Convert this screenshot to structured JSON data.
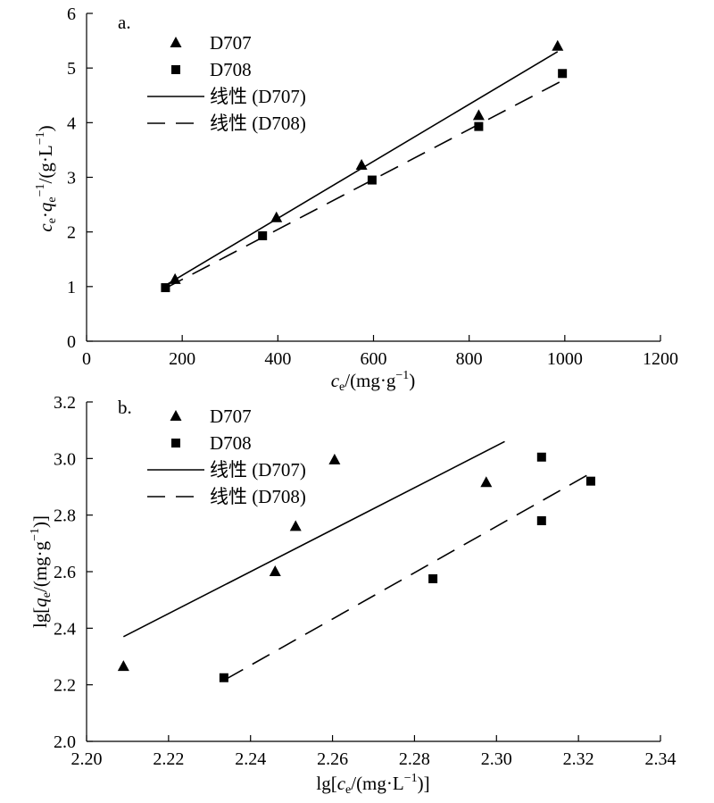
{
  "chart_data": [
    {
      "type": "scatter",
      "panel_label": "a.",
      "xlabel": "c_e/(mg·g^-1)",
      "ylabel": "c_e·q_e^-1/(g·L^-1)",
      "xlim": [
        0,
        1200
      ],
      "ylim": [
        0,
        6
      ],
      "x_ticks": [
        0,
        200,
        400,
        600,
        800,
        1000,
        1200
      ],
      "y_ticks": [
        0,
        1,
        2,
        3,
        4,
        5,
        6
      ],
      "x_tick_labels": [
        "0",
        "200",
        "400",
        "600",
        "800",
        "1000",
        "1200"
      ],
      "y_tick_labels": [
        "0",
        "1",
        "2",
        "3",
        "4",
        "5",
        "6"
      ],
      "legend_position": "top-left",
      "series": [
        {
          "name": "D707",
          "marker": "triangle",
          "x": [
            185,
            397,
            575,
            820,
            985
          ],
          "y": [
            1.13,
            2.26,
            3.22,
            4.13,
            5.4
          ]
        },
        {
          "name": "D708",
          "marker": "square",
          "x": [
            165,
            368,
            597,
            820,
            995
          ],
          "y": [
            0.98,
            1.93,
            2.95,
            3.93,
            4.9
          ]
        }
      ],
      "fits": [
        {
          "name": "线性 (D707)",
          "style": "solid",
          "x": [
            170,
            985
          ],
          "y": [
            1.05,
            5.3
          ]
        },
        {
          "name": "线性 (D708)",
          "style": "dashed",
          "x": [
            165,
            995
          ],
          "y": [
            0.97,
            4.77
          ]
        }
      ]
    },
    {
      "type": "scatter",
      "panel_label": "b.",
      "xlabel": "lg[c_e/(mg·L^-1)]",
      "ylabel": "lg[q_e/(mg·g^-1)]",
      "xlim": [
        2.2,
        2.34
      ],
      "ylim": [
        2.0,
        3.2
      ],
      "x_ticks": [
        2.2,
        2.22,
        2.24,
        2.26,
        2.28,
        2.3,
        2.32,
        2.34
      ],
      "y_ticks": [
        2.0,
        2.2,
        2.4,
        2.6,
        2.8,
        3.0,
        3.2
      ],
      "x_tick_labels": [
        "2.20",
        "2.22",
        "2.24",
        "2.26",
        "2.28",
        "2.30",
        "2.32",
        "2.34"
      ],
      "y_tick_labels": [
        "2.0",
        "2.2",
        "2.4",
        "2.6",
        "2.8",
        "3.0",
        "3.2"
      ],
      "legend_position": "top-left",
      "series": [
        {
          "name": "D707",
          "marker": "triangle",
          "x": [
            2.209,
            2.246,
            2.251,
            2.2605,
            2.2975
          ],
          "y": [
            2.265,
            2.6,
            2.76,
            2.995,
            2.915
          ]
        },
        {
          "name": "D708",
          "marker": "square",
          "x": [
            2.2335,
            2.2845,
            2.311,
            2.311,
            2.323
          ],
          "y": [
            2.225,
            2.575,
            3.005,
            2.78,
            2.92
          ]
        }
      ],
      "fits": [
        {
          "name": "线性 (D707)",
          "style": "solid",
          "x": [
            2.209,
            2.302
          ],
          "y": [
            2.37,
            3.06
          ]
        },
        {
          "name": "线性 (D708)",
          "style": "dashed",
          "x": [
            2.234,
            2.322
          ],
          "y": [
            2.22,
            2.94
          ]
        }
      ]
    }
  ]
}
